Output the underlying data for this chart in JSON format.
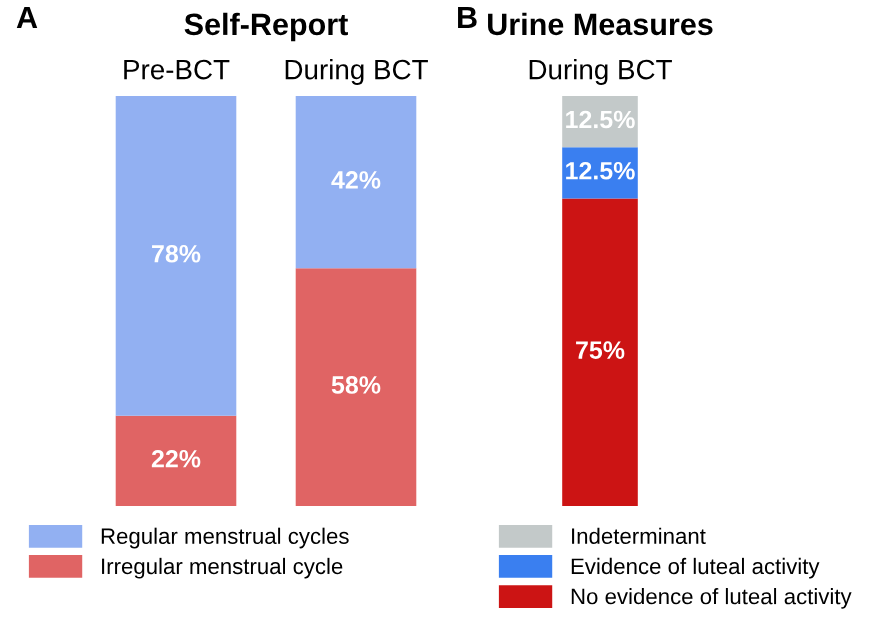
{
  "chart_data": [
    {
      "type": "bar",
      "title": "Self-Report",
      "annotations": [
        "A"
      ],
      "stacked": true,
      "categories": [
        "Pre-BCT",
        "During BCT"
      ],
      "ylim": [
        0,
        100
      ],
      "tick_labels": "x",
      "legend": "bottom",
      "series": [
        {
          "name": "Irregular menstrual cycle",
          "color": "#e06464",
          "values": [
            22,
            58
          ],
          "value_labels": [
            "22%",
            "58%"
          ]
        },
        {
          "name": "Regular menstrual cycles",
          "color": "#92b0f2",
          "values": [
            78,
            42
          ],
          "value_labels": [
            "78%",
            "42%"
          ]
        }
      ]
    },
    {
      "type": "bar",
      "title": "Urine Measures",
      "annotations": [
        "B"
      ],
      "stacked": true,
      "categories": [
        "During BCT"
      ],
      "ylim": [
        0,
        100
      ],
      "tick_labels": "x",
      "legend": "bottom",
      "series": [
        {
          "name": "No evidence of luteal activity",
          "color": "#cc1414",
          "values": [
            75
          ],
          "value_labels": [
            "75%"
          ]
        },
        {
          "name": "Evidence of luteal activity",
          "color": "#3a7ff0",
          "values": [
            12.5
          ],
          "value_labels": [
            "12.5%"
          ]
        },
        {
          "name": "Indeterminant",
          "color": "#c3c9c9",
          "values": [
            12.5
          ],
          "value_labels": [
            "12.5%"
          ]
        }
      ]
    }
  ]
}
